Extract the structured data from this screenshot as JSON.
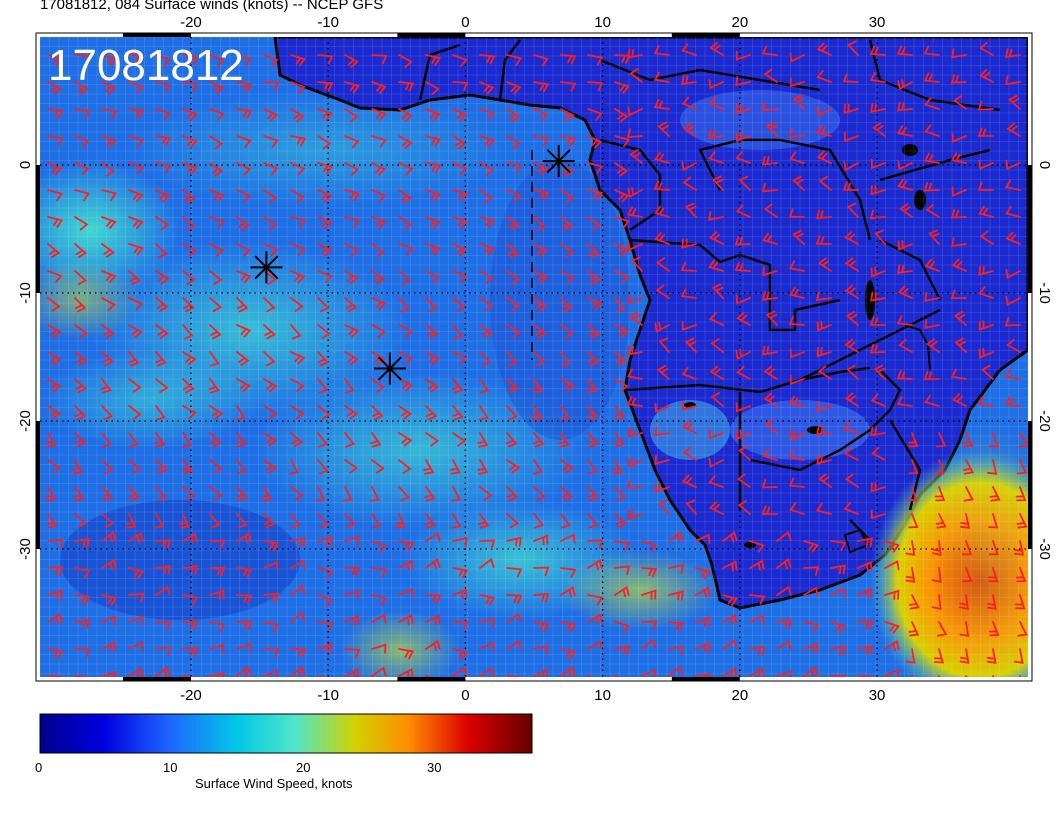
{
  "title": "17081812, 084 Surface winds (knots) -- NCEP GFS",
  "stamp": "17081812",
  "lon_ticks": [
    "-20",
    "-10",
    "0",
    "10",
    "20",
    "30"
  ],
  "lat_ticks": [
    "0",
    "-10",
    "-20",
    "-30"
  ],
  "colorbar": {
    "title": "Surface Wind Speed, knots",
    "ticks": [
      "0",
      "10",
      "20",
      "30"
    ],
    "range": [
      0,
      38
    ],
    "colors": [
      "#00008c",
      "#0000e0",
      "#1e64ff",
      "#00c8e6",
      "#50e6c8",
      "#d2d200",
      "#ff8c00",
      "#dc0000",
      "#640000"
    ]
  },
  "map": {
    "lon_range": [
      -31,
      41
    ],
    "lat_range": [
      -40,
      10
    ],
    "ocean_color": "#1e5cdc",
    "land_color": "#1e32c8",
    "barb_color": "#ff1e1e",
    "markers": [
      {
        "lon": -14.5,
        "lat": -8.0
      },
      {
        "lon": -5.5,
        "lat": -15.9
      },
      {
        "lon": 6.8,
        "lat": 0.3
      }
    ]
  }
}
